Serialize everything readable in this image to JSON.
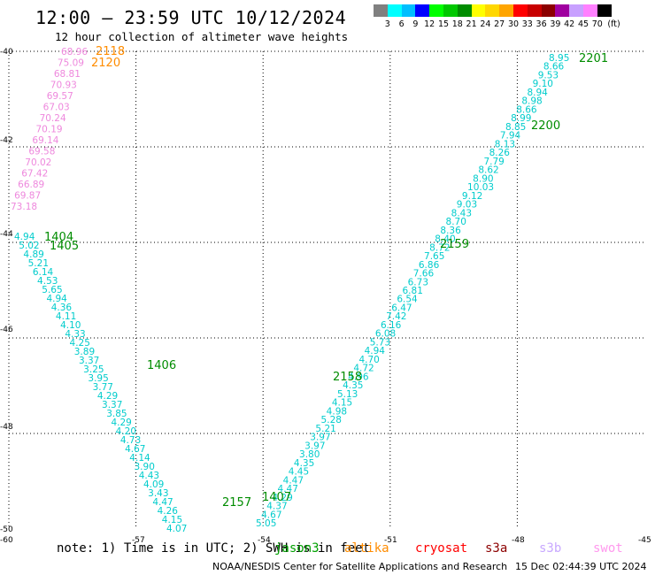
{
  "title": "12:00 — 23:59 UTC 10/12/2024",
  "subtitle": "12 hour collection of altimeter wave heights",
  "color_scale": {
    "labels": [
      "3",
      "6",
      "9",
      "12",
      "15",
      "18",
      "21",
      "24",
      "27",
      "30",
      "33",
      "36",
      "39",
      "42",
      "45",
      "70"
    ],
    "unit": "(ft)",
    "colors": [
      "#808080",
      "#00ffff",
      "#00bfff",
      "#0000ff",
      "#00ff00",
      "#00c800",
      "#008c00",
      "#ffff00",
      "#ffd700",
      "#ffa500",
      "#ff0000",
      "#c80000",
      "#8c0000",
      "#a000a0",
      "#c8a0ff",
      "#ff80ff",
      "#000000"
    ]
  },
  "map": {
    "lat_labels": [
      "-40",
      "-42",
      "-44",
      "-46",
      "-48",
      "-50"
    ],
    "lon_labels": [
      "-60",
      "-57",
      "-54",
      "-51",
      "-48",
      "-45"
    ]
  },
  "tracks": [
    {
      "name": "swot",
      "color": "#ee88dd",
      "values": [
        "68.96",
        "75.09",
        "68.81",
        "70.93",
        "69.57",
        "67.03",
        "70.24",
        "70.19",
        "69.14",
        "69.58",
        "70.02",
        "67.42",
        "66.89",
        "69.87",
        "73.18"
      ]
    },
    {
      "name": "ne-track",
      "color": "#00cccc",
      "values": [
        "5.05",
        "4.67",
        "4.37",
        "4.29",
        "4.47",
        "4.47",
        "4.45",
        "4.35",
        "3.80",
        "3.97",
        "3.97",
        "5.21",
        "5.28",
        "4.98",
        "4.15",
        "5.13",
        "4.35",
        "4.96",
        "4.72",
        "4.70",
        "4.94",
        "5.73",
        "6.08",
        "6.16",
        "7.42",
        "6.47",
        "6.54",
        "6.81",
        "6.73",
        "7.66",
        "6.86",
        "7.65",
        "8.72",
        "8.40",
        "8.36",
        "8.70",
        "8.43",
        "9.03",
        "9.12",
        "10.03",
        "8.90",
        "8.62",
        "7.79",
        "8.26",
        "8.13",
        "7.94",
        "8.85",
        "8.99",
        "8.66",
        "8.98",
        "8.94",
        "9.10",
        "9.53",
        "8.66",
        "8.95"
      ]
    },
    {
      "name": "se-track",
      "color": "#00cccc",
      "values": [
        "4.94",
        "5.02",
        "4.89",
        "5.21",
        "6.14",
        "4.53",
        "5.65",
        "4.94",
        "4.36",
        "4.11",
        "4.10",
        "4.33",
        "4.25",
        "3.89",
        "3.37",
        "3.25",
        "3.95",
        "3.77",
        "4.29",
        "3.37",
        "3.85",
        "4.29",
        "4.20",
        "4.73",
        "4.67",
        "4.14",
        "3.90",
        "4.43",
        "4.09",
        "3.43",
        "4.47",
        "4.26",
        "4.15",
        "4.07"
      ]
    }
  ],
  "time_labels": [
    {
      "text": "2118",
      "color": "#ff8c00"
    },
    {
      "text": "2120",
      "color": "#ff8c00"
    },
    {
      "text": "2201",
      "color": "#008c00"
    },
    {
      "text": "2200",
      "color": "#008c00"
    },
    {
      "text": "2159",
      "color": "#008c00"
    },
    {
      "text": "2158",
      "color": "#008c00"
    },
    {
      "text": "2157",
      "color": "#008c00"
    },
    {
      "text": "1404",
      "color": "#008c00"
    },
    {
      "text": "1405",
      "color": "#008c00"
    },
    {
      "text": "1406",
      "color": "#008c00"
    },
    {
      "text": "1407",
      "color": "#008c00"
    }
  ],
  "note": "note: 1) Time is in UTC; 2) SWH is in feet",
  "satellites": [
    {
      "name": "jason3",
      "color": "#00a000"
    },
    {
      "name": "altika",
      "color": "#ff8c00"
    },
    {
      "name": "cryosat",
      "color": "#ff0000"
    },
    {
      "name": "s3a",
      "color": "#8c0000"
    },
    {
      "name": "s3b",
      "color": "#c8a8ff"
    },
    {
      "name": "swot",
      "color": "#ff99ee"
    }
  ],
  "footer": {
    "left": "NOAA/NESDIS Center for Satellite Applications and Research",
    "right": "15 Dec 02:44:39 UTC 2024"
  }
}
